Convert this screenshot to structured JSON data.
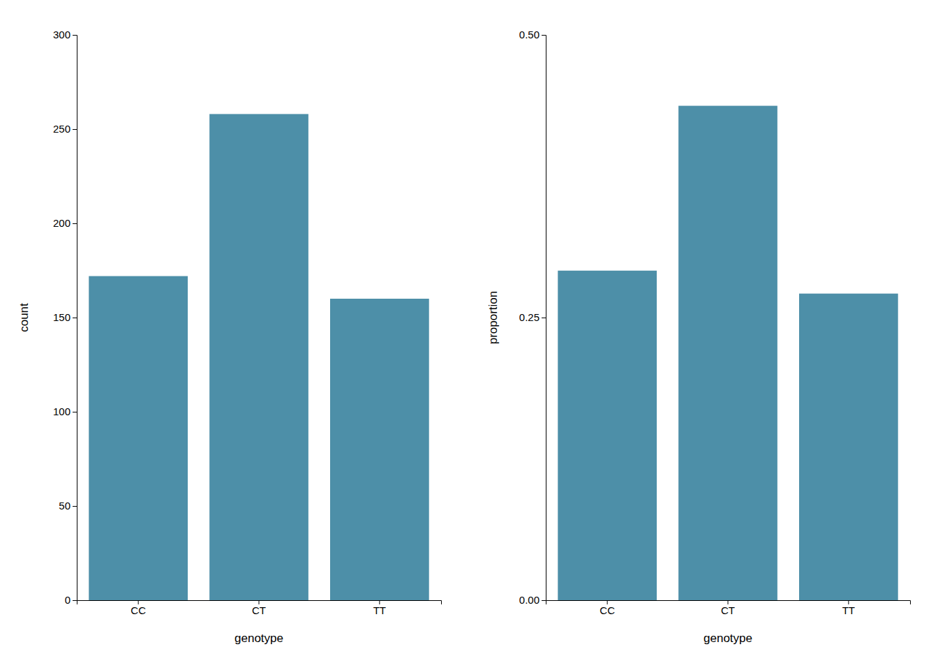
{
  "chart_data": [
    {
      "type": "bar",
      "categories": [
        "CC",
        "CT",
        "TT"
      ],
      "values": [
        172,
        258,
        160
      ],
      "color": "#4d8fa8",
      "xlabel": "genotype",
      "ylabel": "count",
      "ylim": [
        0,
        300
      ],
      "yticks": [
        0,
        50,
        100,
        150,
        200,
        250,
        300
      ],
      "grid": false
    },
    {
      "type": "bar",
      "categories": [
        "CC",
        "CT",
        "TT"
      ],
      "values": [
        0.2915,
        0.4373,
        0.2712
      ],
      "color": "#4d8fa8",
      "xlabel": "genotype",
      "ylabel": "proportion",
      "ylim": [
        0,
        0.5
      ],
      "yticks": [
        {
          "value": 0.0,
          "label": "0.00"
        },
        {
          "value": 0.25,
          "label": "0.25"
        },
        {
          "value": 0.5,
          "label": "0.50"
        }
      ],
      "grid": false
    }
  ]
}
